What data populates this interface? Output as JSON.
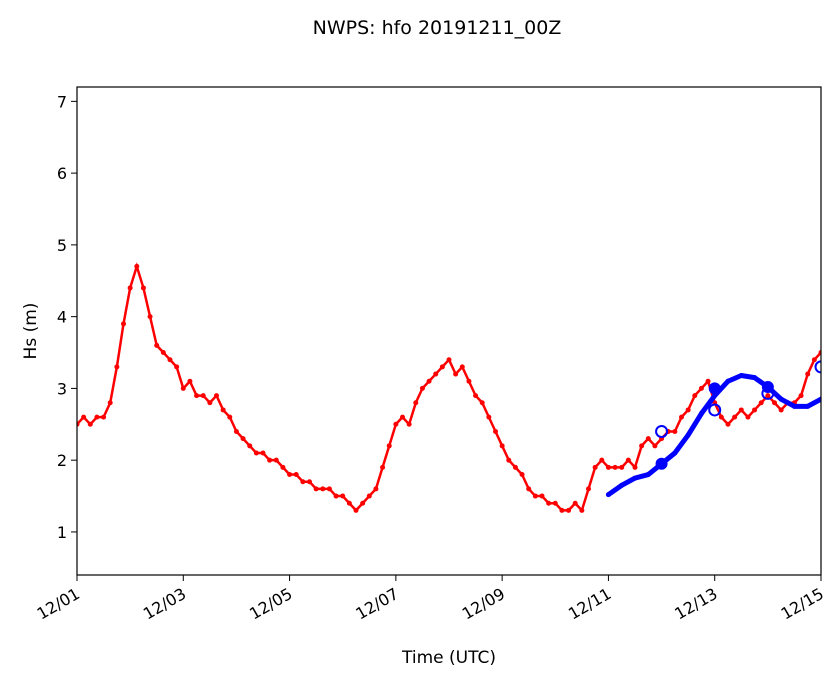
{
  "chart_data": {
    "type": "line",
    "title": "NWPS: hfo 20191211_00Z",
    "xlabel": "Time (UTC)",
    "ylabel": "Hs (m)",
    "ylim": [
      0.4,
      7.2
    ],
    "xlim_days": [
      0,
      14
    ],
    "x_ticks": [
      {
        "day": 0,
        "label": "12/01"
      },
      {
        "day": 2,
        "label": "12/03"
      },
      {
        "day": 4,
        "label": "12/05"
      },
      {
        "day": 6,
        "label": "12/07"
      },
      {
        "day": 8,
        "label": "12/09"
      },
      {
        "day": 10,
        "label": "12/11"
      },
      {
        "day": 12,
        "label": "12/13"
      },
      {
        "day": 14,
        "label": "12/15"
      }
    ],
    "y_ticks": [
      1,
      2,
      3,
      4,
      5,
      6,
      7
    ],
    "series": [
      {
        "name": "observed",
        "color": "#ff0000",
        "x_step_days": 0.125,
        "values": [
          2.5,
          2.6,
          2.5,
          2.6,
          2.6,
          2.8,
          3.3,
          3.9,
          4.4,
          4.7,
          4.4,
          4.0,
          3.6,
          3.5,
          3.4,
          3.3,
          3.0,
          3.1,
          2.9,
          2.9,
          2.8,
          2.9,
          2.7,
          2.6,
          2.4,
          2.3,
          2.2,
          2.1,
          2.1,
          2.0,
          2.0,
          1.9,
          1.8,
          1.8,
          1.7,
          1.7,
          1.6,
          1.6,
          1.6,
          1.5,
          1.5,
          1.4,
          1.3,
          1.4,
          1.5,
          1.6,
          1.9,
          2.2,
          2.5,
          2.6,
          2.5,
          2.8,
          3.0,
          3.1,
          3.2,
          3.3,
          3.4,
          3.2,
          3.3,
          3.1,
          2.9,
          2.8,
          2.6,
          2.4,
          2.2,
          2.0,
          1.9,
          1.8,
          1.6,
          1.5,
          1.5,
          1.4,
          1.4,
          1.3,
          1.3,
          1.4,
          1.3,
          1.6,
          1.9,
          2.0,
          1.9,
          1.9,
          1.9,
          2.0,
          1.9,
          2.2,
          2.3,
          2.2,
          2.3,
          2.4,
          2.4,
          2.6,
          2.7,
          2.9,
          3.0,
          3.1,
          2.8,
          2.6,
          2.5,
          2.6,
          2.7,
          2.6,
          2.7,
          2.8,
          2.9,
          2.8,
          2.7,
          2.8,
          2.8,
          2.9,
          3.2,
          3.4,
          3.5
        ]
      },
      {
        "name": "model",
        "color": "#0000ff",
        "x": [
          10,
          10.25,
          10.5,
          10.75,
          11,
          11.25,
          11.5,
          11.75,
          12,
          12.25,
          12.5,
          12.75,
          13,
          13.25,
          13.5,
          13.75,
          14
        ],
        "values": [
          1.52,
          1.65,
          1.75,
          1.8,
          1.95,
          2.1,
          2.35,
          2.65,
          2.9,
          3.1,
          3.18,
          3.15,
          3.02,
          2.85,
          2.75,
          2.75,
          2.85
        ]
      }
    ],
    "markers": [
      {
        "day": 11,
        "value": 1.95,
        "filled": true
      },
      {
        "day": 11,
        "value": 2.4,
        "filled": false
      },
      {
        "day": 12,
        "value": 3.0,
        "filled": true
      },
      {
        "day": 12,
        "value": 2.7,
        "filled": false
      },
      {
        "day": 13,
        "value": 3.02,
        "filled": true
      },
      {
        "day": 13,
        "value": 2.93,
        "filled": false
      },
      {
        "day": 14,
        "value": 3.3,
        "filled": false
      }
    ],
    "grid": false,
    "legend": "none"
  }
}
